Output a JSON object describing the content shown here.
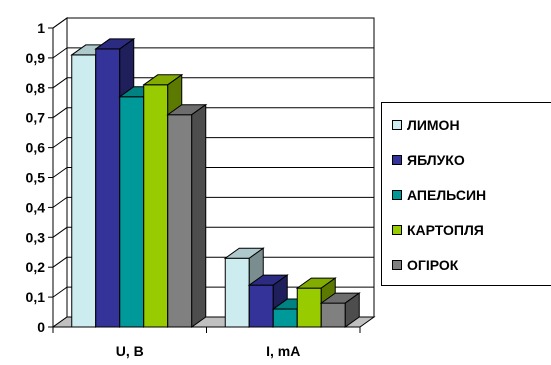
{
  "chart_data": {
    "type": "bar",
    "categories": [
      "U, B",
      "I, mA"
    ],
    "series": [
      {
        "name": "ЛИМОН",
        "values": [
          0.91,
          0.23
        ],
        "color": "#CCECF0"
      },
      {
        "name": "ЯБЛУКО",
        "values": [
          0.93,
          0.14
        ],
        "color": "#333399"
      },
      {
        "name": "АПЕЛЬСИН",
        "values": [
          0.77,
          0.06
        ],
        "color": "#009999"
      },
      {
        "name": "КАРТОПЛЯ",
        "values": [
          0.81,
          0.13
        ],
        "color": "#99CC00"
      },
      {
        "name": "ОГІРОК",
        "values": [
          0.71,
          0.08
        ],
        "color": "#808080"
      }
    ],
    "y_ticks": [
      "0",
      "0,1",
      "0,2",
      "0,3",
      "0,4",
      "0,5",
      "0,6",
      "0,7",
      "0,8",
      "0,9",
      "1"
    ],
    "ylim": [
      0,
      1
    ],
    "grid": true,
    "legend_position": "right",
    "style": "3d-clustered-column"
  }
}
